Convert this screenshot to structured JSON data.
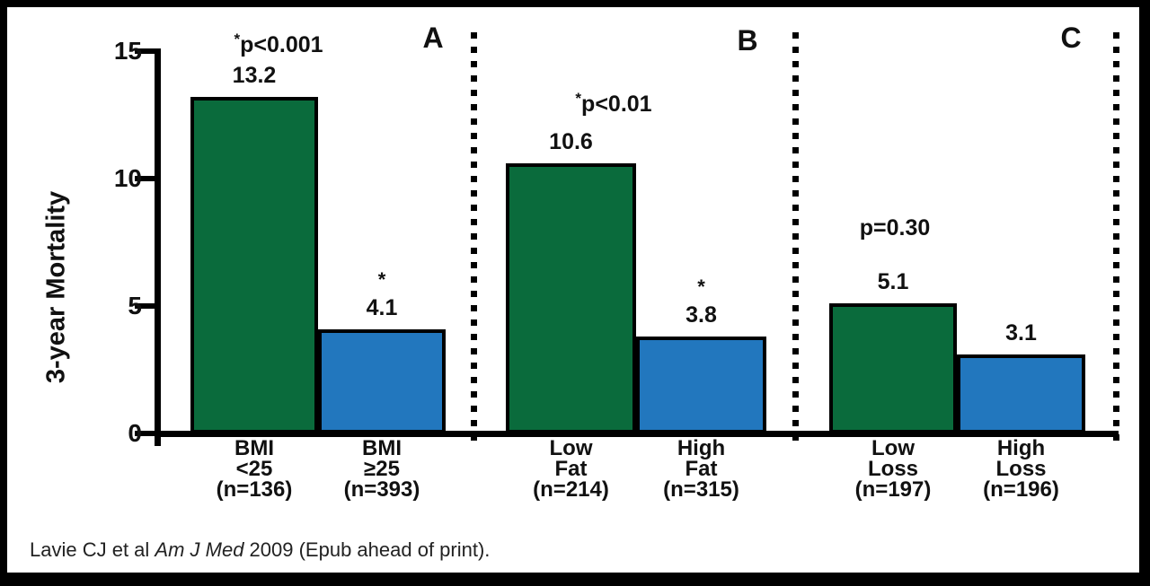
{
  "figure": {
    "ylabel": "3-year Mortality",
    "citation": {
      "prefix": "Lavie CJ et al ",
      "italic": "Am J Med",
      "suffix": " 2009 (Epub ahead of print)."
    }
  },
  "colors": {
    "green": "#0a6b3c",
    "blue": "#2277be",
    "frame": "#000000",
    "background": "#ffffff"
  },
  "chart_data": {
    "type": "bar",
    "title": "",
    "xlabel": "",
    "ylabel": "3-year Mortality",
    "ylim": [
      0,
      15
    ],
    "yticks": [
      0,
      5,
      10,
      15
    ],
    "grid": false,
    "legend": "none",
    "panels": [
      {
        "label": "A",
        "p_value": "*p<0.001",
        "bars": [
          {
            "lines": [
              "BMI",
              "<25",
              "(n=136)"
            ],
            "category": "BMI <25 (n=136)",
            "value": 13.2,
            "color": "green",
            "annotation": ""
          },
          {
            "lines": [
              "BMI",
              "≥25",
              "(n=393)"
            ],
            "category": "BMI ≥25 (n=393)",
            "value": 4.1,
            "color": "blue",
            "annotation": "*"
          }
        ]
      },
      {
        "label": "B",
        "p_value": "*p<0.01",
        "bars": [
          {
            "lines": [
              "Low",
              "Fat",
              "(n=214)"
            ],
            "category": "Low Fat (n=214)",
            "value": 10.6,
            "color": "green",
            "annotation": ""
          },
          {
            "lines": [
              "High",
              "Fat",
              "(n=315)"
            ],
            "category": "High Fat (n=315)",
            "value": 3.8,
            "color": "blue",
            "annotation": "*"
          }
        ]
      },
      {
        "label": "C",
        "p_value": "p=0.30",
        "bars": [
          {
            "lines": [
              "Low",
              "Loss",
              "(n=197)"
            ],
            "category": "Low Loss (n=197)",
            "value": 5.1,
            "color": "green",
            "annotation": ""
          },
          {
            "lines": [
              "High",
              "Loss",
              "(n=196)"
            ],
            "category": "High Loss (n=196)",
            "value": 3.1,
            "color": "blue",
            "annotation": ""
          }
        ]
      }
    ]
  }
}
